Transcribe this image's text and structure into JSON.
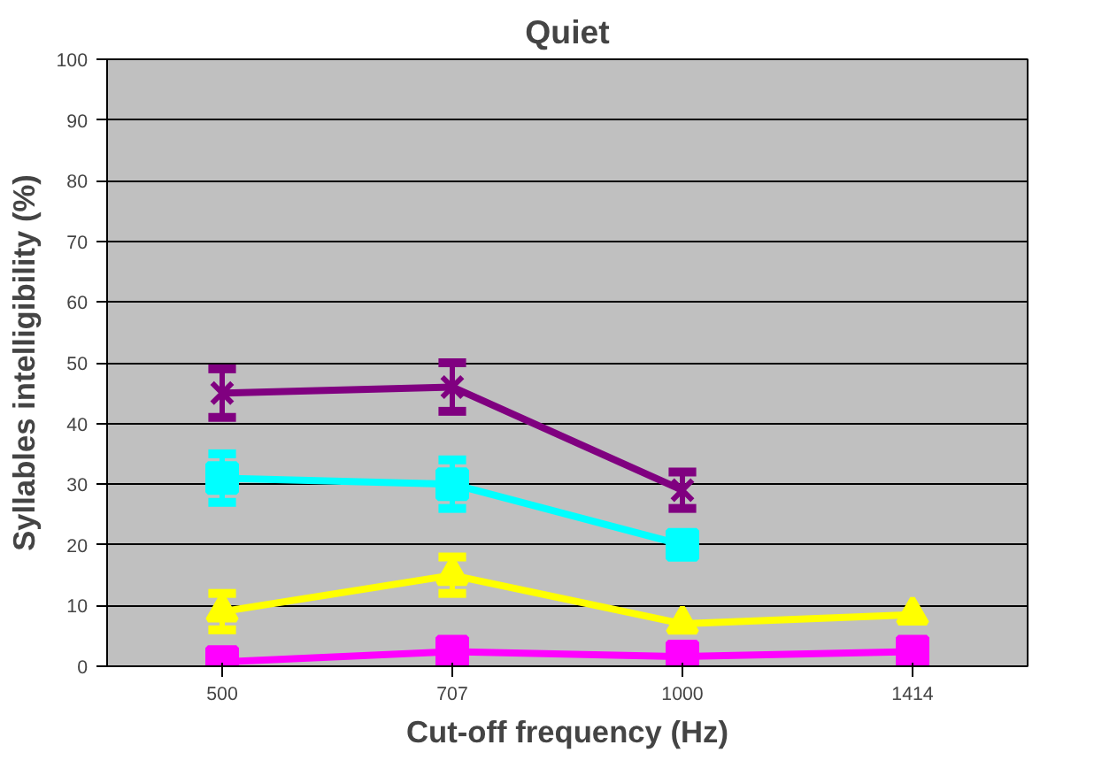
{
  "chart_data": {
    "type": "line",
    "title": "Quiet",
    "xlabel": "Cut-off frequency (Hz)",
    "ylabel": "Syllables intelligibility (%)",
    "categories": [
      "500",
      "707",
      "1000",
      "1414"
    ],
    "series": [
      {
        "color": "#800080",
        "marker": "cross",
        "values": [
          45,
          46,
          29,
          null
        ],
        "errors": [
          4,
          4,
          3,
          null
        ]
      },
      {
        "color": "#00ffff",
        "marker": "square",
        "values": [
          31,
          30,
          20,
          null
        ],
        "errors": [
          4,
          4,
          null,
          null
        ]
      },
      {
        "color": "#ffff00",
        "marker": "triangle",
        "values": [
          9,
          15,
          7,
          8.5
        ],
        "errors": [
          3,
          3,
          null,
          null
        ]
      },
      {
        "color": "#ff00ff",
        "marker": "square",
        "values": [
          0.7,
          2.4,
          1.6,
          2.4
        ]
      }
    ],
    "ylim": [
      0,
      100
    ],
    "yticks": [
      0,
      10,
      20,
      30,
      40,
      50,
      60,
      70,
      80,
      90,
      100
    ],
    "grid": "y"
  }
}
